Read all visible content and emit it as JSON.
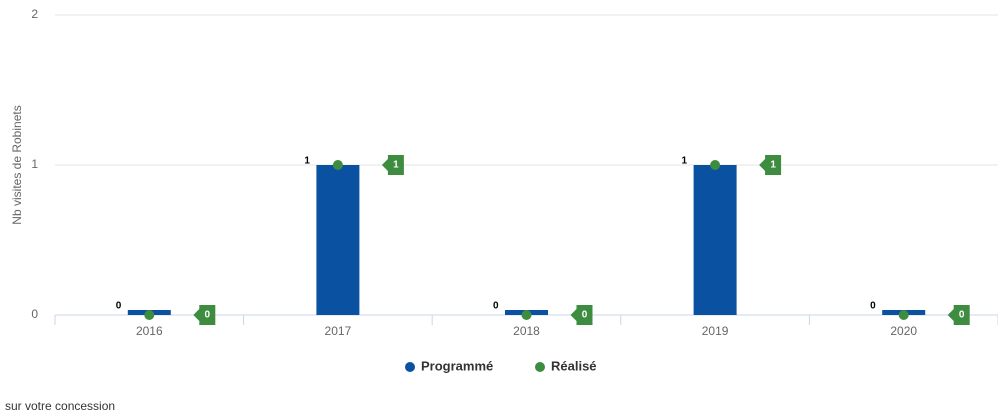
{
  "chart_data": {
    "type": "bar",
    "y_label": "Nb visites de Robinets",
    "categories": [
      "2016",
      "2017",
      "2018",
      "2019",
      "2020"
    ],
    "series": [
      {
        "name": "Programmé",
        "color": "#0a52a1",
        "values": [
          0,
          1,
          0,
          1,
          0
        ]
      },
      {
        "name": "Réalisé",
        "color": "#3d8c40",
        "values": [
          0,
          1,
          0,
          1,
          0
        ]
      }
    ],
    "ylim": [
      0,
      2
    ],
    "yticks": [
      0,
      1,
      2
    ],
    "grid": true,
    "caption": "sur votre concession"
  }
}
